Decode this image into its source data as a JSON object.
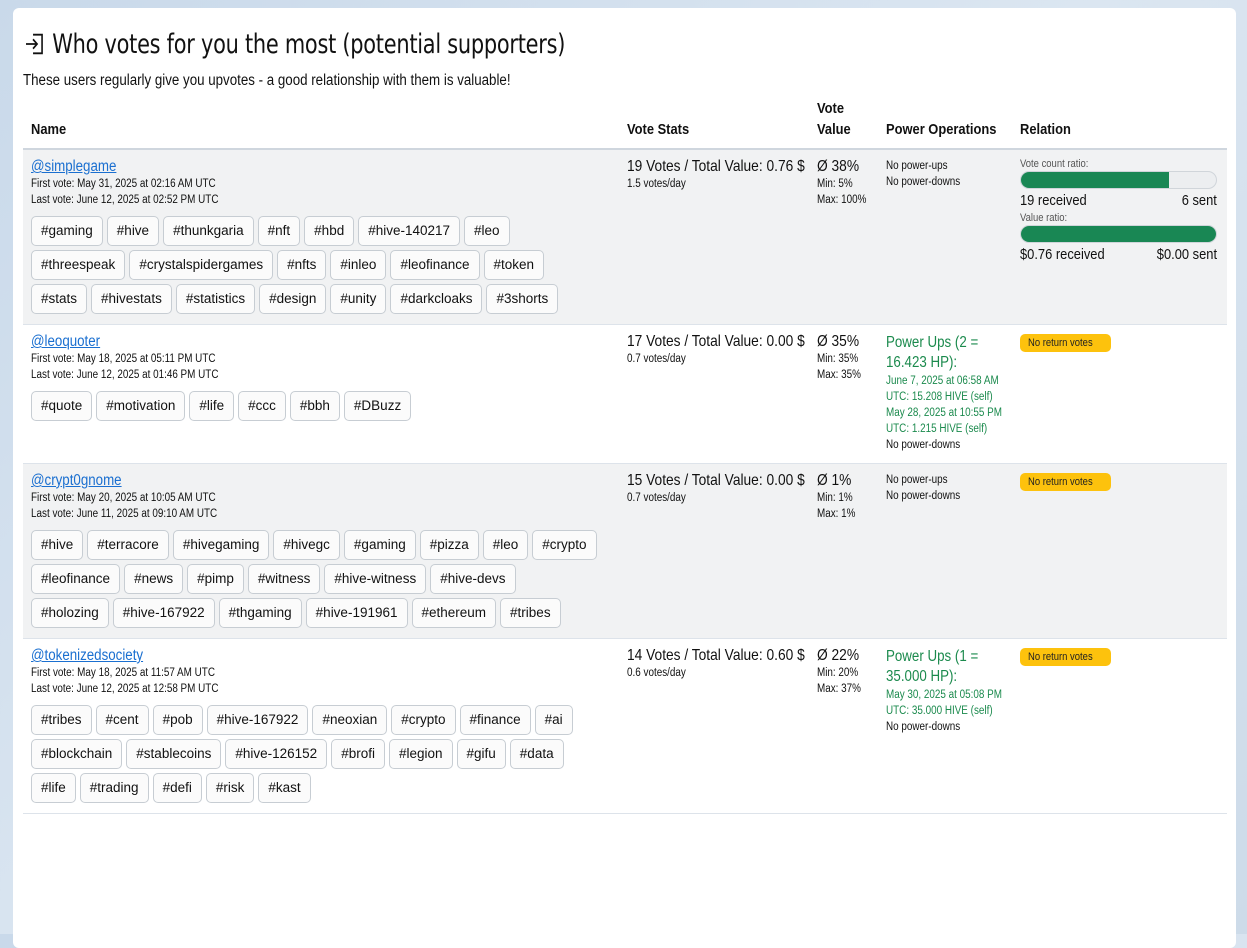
{
  "header": {
    "title": "Who votes for you the most (potential supporters)",
    "subtitle": "These users regularly give you upvotes - a good relationship with them is valuable!",
    "icon": "login-icon"
  },
  "columns": {
    "name": "Name",
    "vote_stats": "Vote Stats",
    "vote_value_line1": "Vote",
    "vote_value_line2": "Value",
    "power_operations": "Power Operations",
    "relation": "Relation"
  },
  "colors": {
    "accent_green": "#198754",
    "link_blue": "#1a6fd0",
    "badge_yellow": "#fdc20d"
  },
  "rows": [
    {
      "user": "@simplegame",
      "first_vote": "First vote: May 31, 2025 at 02:16 AM UTC",
      "last_vote": "Last vote: June 12, 2025 at 02:52 PM UTC",
      "tags": [
        "#gaming",
        "#hive",
        "#thunkgaria",
        "#nft",
        "#hbd",
        "#hive-140217",
        "#leo",
        "#threespeak",
        "#crystalspidergames",
        "#nfts",
        "#inleo",
        "#leofinance",
        "#token",
        "#stats",
        "#hivestats",
        "#statistics",
        "#design",
        "#unity",
        "#darkcloaks",
        "#3shorts"
      ],
      "votes": "19 Votes / Total Value: 0.76 $",
      "votes_per_day": "1.5 votes/day",
      "avg": "Ø 38%",
      "min": "Min: 5%",
      "max": "Max: 100%",
      "power_up_title": "",
      "power_ups": "No power-ups",
      "power_downs": "No power-downs",
      "relation": {
        "vote_count_label": "Vote count ratio:",
        "vote_count_fill": 0.76,
        "received_count": "19 received",
        "sent_count": "6 sent",
        "value_label": "Value ratio:",
        "value_fill": 1.0,
        "received_value": "$0.76 received",
        "sent_value": "$0.00 sent"
      }
    },
    {
      "user": "@leoquoter",
      "first_vote": "First vote: May 18, 2025 at 05:11 PM UTC",
      "last_vote": "Last vote: June 12, 2025 at 01:46 PM UTC",
      "tags": [
        "#quote",
        "#motivation",
        "#life",
        "#ccc",
        "#bbh",
        "#DBuzz"
      ],
      "votes": "17 Votes / Total Value: 0.00 $",
      "votes_per_day": "0.7 votes/day",
      "avg": "Ø 35%",
      "min": "Min: 35%",
      "max": "Max: 35%",
      "power_up_title_1": "Power Ups (2 =",
      "power_up_title_2": "16.423 HP):",
      "power_up_entries": [
        "June 7, 2025 at 06:58 AM",
        "UTC: 15.208 HIVE (self)",
        "May 28, 2025 at 10:55 PM",
        "UTC: 1.215 HIVE (self)"
      ],
      "power_downs": "No power-downs",
      "badge": "No return votes"
    },
    {
      "user": "@crypt0gnome",
      "first_vote": "First vote: May 20, 2025 at 10:05 AM UTC",
      "last_vote": "Last vote: June 11, 2025 at 09:10 AM UTC",
      "tags": [
        "#hive",
        "#terracore",
        "#hivegaming",
        "#hivegc",
        "#gaming",
        "#pizza",
        "#leo",
        "#crypto",
        "#leofinance",
        "#news",
        "#pimp",
        "#witness",
        "#hive-witness",
        "#hive-devs",
        "#holozing",
        "#hive-167922",
        "#thgaming",
        "#hive-191961",
        "#ethereum",
        "#tribes"
      ],
      "votes": "15 Votes / Total Value: 0.00 $",
      "votes_per_day": "0.7 votes/day",
      "avg": "Ø 1%",
      "min": "Min: 1%",
      "max": "Max: 1%",
      "power_ups": "No power-ups",
      "power_downs": "No power-downs",
      "badge": "No return votes"
    },
    {
      "user": "@tokenizedsociety",
      "first_vote": "First vote: May 18, 2025 at 11:57 AM UTC",
      "last_vote": "Last vote: June 12, 2025 at 12:58 PM UTC",
      "tags": [
        "#tribes",
        "#cent",
        "#pob",
        "#hive-167922",
        "#neoxian",
        "#crypto",
        "#finance",
        "#ai",
        "#blockchain",
        "#stablecoins",
        "#hive-126152",
        "#brofi",
        "#legion",
        "#gifu",
        "#data",
        "#life",
        "#trading",
        "#defi",
        "#risk",
        "#kast"
      ],
      "votes": "14 Votes / Total Value: 0.60 $",
      "votes_per_day": "0.6 votes/day",
      "avg": "Ø 22%",
      "min": "Min: 20%",
      "max": "Max: 37%",
      "power_up_title_1": "Power Ups (1 =",
      "power_up_title_2": "35.000 HP):",
      "power_up_entries": [
        "May 30, 2025 at 05:08 PM",
        "UTC: 35.000 HIVE (self)"
      ],
      "power_downs": "No power-downs",
      "badge": "No return votes"
    }
  ]
}
